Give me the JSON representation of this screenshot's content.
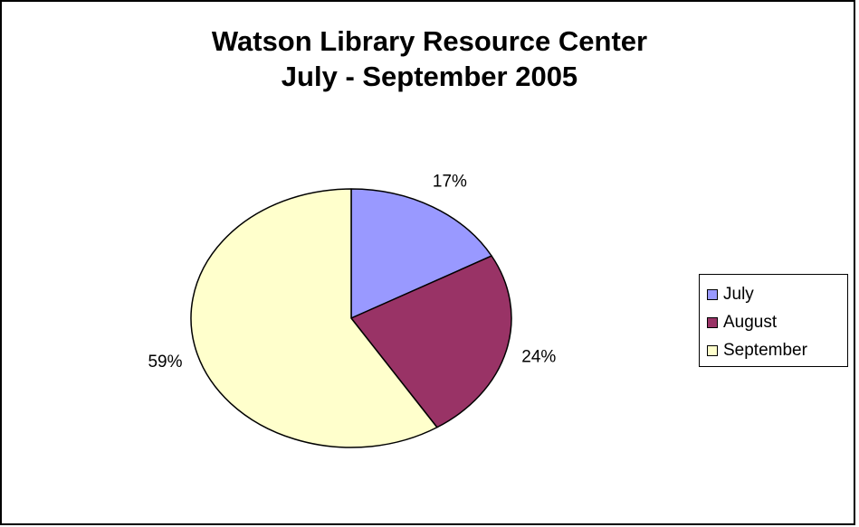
{
  "chart_data": {
    "type": "pie",
    "title": [
      "Watson Library Resource Center",
      "July - September 2005"
    ],
    "categories": [
      "July",
      "August",
      "September"
    ],
    "values": [
      17,
      24,
      59
    ],
    "data_labels": [
      "17%",
      "24%",
      "59%"
    ],
    "colors": [
      "#9999ff",
      "#993366",
      "#ffffcc"
    ],
    "legend_position": "right"
  }
}
